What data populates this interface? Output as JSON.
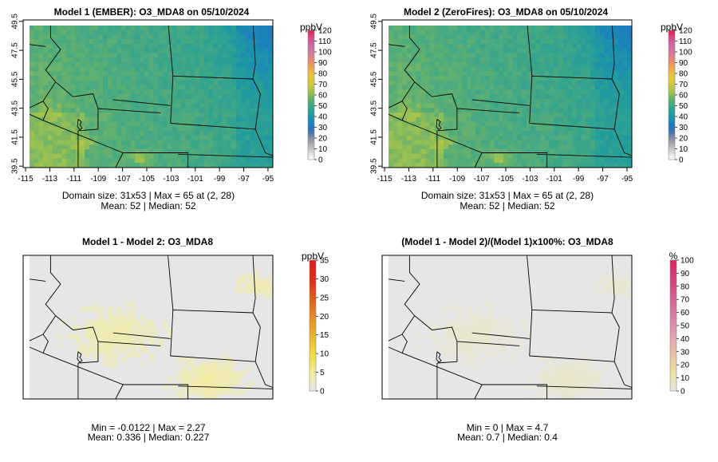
{
  "chart_data": [
    {
      "type": "heatmap",
      "title": "Model 1 (EMBER): O3_MDA8 on 05/10/2024",
      "field": "O3_MDA8",
      "units": "ppbV",
      "x_ticks": [
        "-115",
        "-113",
        "-111",
        "-109",
        "-107",
        "-105",
        "-103",
        "-101",
        "-99",
        "-97",
        "-95"
      ],
      "y_ticks": [
        "39.5",
        "41.5",
        "43.5",
        "45.5",
        "47.5",
        "49.5"
      ],
      "xlim": [
        -115.2,
        -94.6
      ],
      "ylim": [
        39.4,
        49.6
      ],
      "colorbar_ticks": [
        "0",
        "10",
        "20",
        "30",
        "40",
        "50",
        "60",
        "70",
        "80",
        "90",
        "100",
        "110",
        "120"
      ],
      "colorbar_range": [
        0,
        120
      ],
      "stats": [
        "Domain size: 31x53 | Max = 65 at (2, 28)",
        "Mean: 52 |  Median: 52"
      ],
      "domain_size": "31x53",
      "max": 65,
      "max_at": "(2, 28)",
      "mean": 52,
      "median": 52
    },
    {
      "type": "heatmap",
      "title": "Model 2 (ZeroFires): O3_MDA8 on 05/10/2024",
      "field": "O3_MDA8",
      "units": "ppbV",
      "x_ticks": [
        "-115",
        "-113",
        "-111",
        "-109",
        "-107",
        "-105",
        "-103",
        "-101",
        "-99",
        "-97",
        "-95"
      ],
      "y_ticks": [
        "39.5",
        "41.5",
        "43.5",
        "45.5",
        "47.5",
        "49.5"
      ],
      "xlim": [
        -115.2,
        -94.6
      ],
      "ylim": [
        39.4,
        49.6
      ],
      "colorbar_ticks": [
        "0",
        "10",
        "20",
        "30",
        "40",
        "50",
        "60",
        "70",
        "80",
        "90",
        "100",
        "110",
        "120"
      ],
      "colorbar_range": [
        0,
        120
      ],
      "stats": [
        "Domain size: 31x53 | Max = 65 at (2, 28)",
        "Mean: 52 |  Median: 52"
      ],
      "domain_size": "31x53",
      "max": 65,
      "max_at": "(2, 28)",
      "mean": 52,
      "median": 52
    },
    {
      "type": "heatmap",
      "title": "Model 1 - Model 2: O3_MDA8",
      "units": "ppbV",
      "colorbar_ticks": [
        "0",
        "5",
        "10",
        "15",
        "20",
        "25",
        "30",
        "35"
      ],
      "colorbar_range": [
        0,
        35
      ],
      "stats": [
        "Min = -0.0122 | Max = 2.27",
        "Mean: 0.336 |  Median: 0.227"
      ],
      "min": -0.0122,
      "max": 2.27,
      "mean": 0.336,
      "median": 0.227
    },
    {
      "type": "heatmap",
      "title": "(Model 1 - Model 2)/(Model 1)x100%: O3_MDA8",
      "units": "%",
      "colorbar_ticks": [
        "0",
        "10",
        "20",
        "30",
        "40",
        "50",
        "60",
        "70",
        "80",
        "90",
        "100"
      ],
      "colorbar_range": [
        0,
        100
      ],
      "stats": [
        "Min = 0 | Max = 4.7",
        "Mean: 0.7 |  Median: 0.4"
      ],
      "min": 0,
      "max": 4.7,
      "mean": 0.7,
      "median": 0.4
    }
  ],
  "colors": {
    "absolute_palette": [
      "#ffffff",
      "#d9d9d9",
      "#b0b0b0",
      "#7a8aa0",
      "#2a6fc0",
      "#1a86b8",
      "#1f9aa0",
      "#3aa68a",
      "#62b070",
      "#9ec24f",
      "#d4c73a",
      "#e8c83c",
      "#f0a84a",
      "#e88a6a",
      "#d77a9a",
      "#cc6aa8",
      "#d4508a",
      "#e02050"
    ],
    "diff_palette": [
      "#e6e6e6",
      "#f2ec9a",
      "#f0dc40",
      "#ecb22a",
      "#e58a24",
      "#df5a1c",
      "#dc2a18",
      "#e41a1c"
    ],
    "pct_palette": [
      "#e6e6e6",
      "#eee2a0",
      "#e8c0a8",
      "#e0a0b0",
      "#d880a8",
      "#d46098",
      "#d44080",
      "#e02060"
    ],
    "frame": "#000000"
  }
}
